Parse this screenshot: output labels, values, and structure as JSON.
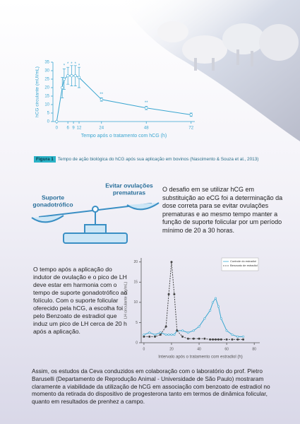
{
  "chart_data": [
    {
      "type": "line",
      "x_label": "Tempo após o tratamento com hCG (h)",
      "y_label": "hCG circulante (mUI/mL)",
      "xlim": [
        -2,
        74
      ],
      "ylim": [
        0,
        35
      ],
      "xticks": [
        0,
        6,
        9,
        12,
        24,
        48,
        72
      ],
      "yticks": [
        0,
        5,
        10,
        15,
        20,
        25,
        30,
        35
      ],
      "axis_color": "#3aa6d0",
      "series": [
        {
          "name": "hCG",
          "color": "#3aa6d0",
          "x": [
            0,
            3,
            4,
            6,
            8,
            10,
            12,
            24,
            48,
            72
          ],
          "values": [
            0,
            20,
            25,
            27,
            27,
            27,
            26,
            13,
            8,
            4
          ],
          "errors": [
            0,
            6,
            6,
            5,
            6,
            6,
            6,
            1,
            1,
            1
          ]
        }
      ],
      "annotations": [
        {
          "x": 4,
          "y": 33,
          "text": "*"
        },
        {
          "x": 6,
          "y": 34,
          "text": "*"
        },
        {
          "x": 8,
          "y": 34,
          "text": "*"
        },
        {
          "x": 10,
          "y": 34,
          "text": "*"
        },
        {
          "x": 12,
          "y": 33,
          "text": "*"
        },
        {
          "x": 24,
          "y": 16,
          "text": "**"
        },
        {
          "x": 48,
          "y": 11,
          "text": "**"
        }
      ]
    },
    {
      "type": "line",
      "x_label": "Intervalo após o tratamento com estradiol (h)",
      "y_label": "LH circulante (ng/mL)",
      "xlim": [
        -2,
        84
      ],
      "ylim": [
        0,
        21
      ],
      "xticks": [
        0,
        20,
        40,
        60,
        80
      ],
      "yticks": [
        0,
        5,
        10,
        15,
        20
      ],
      "axis_color": "#555555",
      "legend": "upper right",
      "series": [
        {
          "name": "Controle do estradiol",
          "color": "#3aa6d0",
          "line_style": "solid",
          "x": [
            0,
            4,
            8,
            12,
            16,
            18,
            20,
            22,
            24,
            28,
            32,
            36,
            40,
            44,
            48,
            50,
            52,
            54,
            56,
            60,
            64,
            68,
            72
          ],
          "values": [
            2,
            2.5,
            2,
            2.5,
            2,
            2,
            2,
            2,
            3,
            3,
            2.5,
            3,
            4,
            6,
            8,
            10,
            11,
            9,
            6,
            3,
            2,
            1.5,
            1.5
          ]
        },
        {
          "name": "Benzoato de estradiol",
          "color": "#444444",
          "line_style": "dashed",
          "x": [
            0,
            4,
            8,
            12,
            16,
            18,
            20,
            22,
            24,
            28,
            32,
            36,
            40,
            44,
            48,
            50,
            52,
            54,
            56,
            60,
            64,
            68,
            72
          ],
          "values": [
            1.5,
            1.5,
            1.5,
            2,
            4,
            12,
            20,
            12,
            3,
            1.5,
            1,
            1,
            1,
            1,
            0.8,
            0.8,
            0.8,
            0.8,
            0.8,
            0.8,
            0.8,
            0.8,
            0.8
          ]
        }
      ]
    }
  ],
  "caption": {
    "label": "Figura 1",
    "text": "Tempo de ação biológica do hCG após sua aplicação em bovinos (Nascimento & Souza et al., 2013)"
  },
  "diagram": {
    "left_label": [
      "Suporte",
      "gonadotrófico"
    ],
    "right_label": [
      "Evitar ovulações",
      "prematuras"
    ]
  },
  "paragraphs": [
    "O desafio em se utilizar hCG em substituição ao eCG foi a determinação da dose correta para se evitar ovulações prematuras e ao mesmo tempo manter a função de suporte folicular por um período mínimo de 20 a 30 horas.",
    "O tempo após a aplicação do indutor de ovulação e o pico de LH deve estar em harmonia com o tempo de suporte gonadotrófico ao folículo. Com o suporte folicular oferecido pela hCG, a escolha foi pelo Benzoato de estradiol que induz um pico de LH cerca de 20 h após a aplicação.",
    "Assim, os estudos da Ceva conduzidos em colaboração com o laboratório do prof. Pietro Baruselli (Departamento de Reprodução Animal - Universidade de São Paulo) mostraram claramente a viabilidade da utilização de hCG em associação com benzoato de estradiol no momento da retirada do dispositivo de progesterona tanto em termos de dinâmica folicular, quanto em resultados de prenhez a campo."
  ]
}
